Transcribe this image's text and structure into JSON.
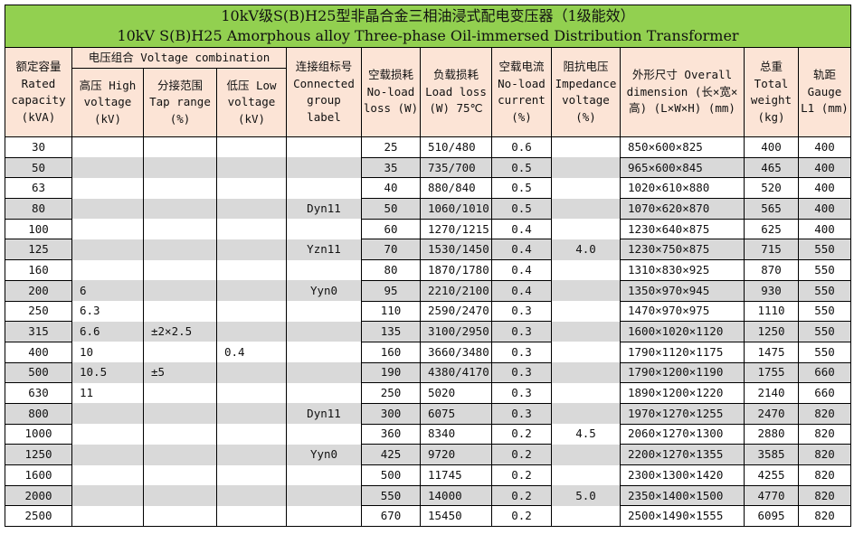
{
  "title": {
    "cn": "10kV级S(B)H25型非晶合金三相油浸式配电变压器（1级能效）",
    "en": "10kV S(B)H25 Amorphous alloy Three-phase Oil-immersed Distribution Transformer"
  },
  "headers": {
    "capacity": "额定容量 Rated capacity (kVA)",
    "voltage_combination": "电压组合 Voltage combination",
    "high_voltage": "高压 High voltage (kV)",
    "tap_range": "分接范围 Tap range (%)",
    "low_voltage": "低压 Low voltage (kV)",
    "group_label": "连接组标号 Connected group label",
    "no_load_loss": "空载损耗 No-load loss (W)",
    "load_loss": "负载损耗 Load loss (W) 75℃",
    "no_load_current": "空载电流 No-load current (%)",
    "impedance": "阻抗电压 Impedance voltage (%)",
    "dimension": "外形尺寸 Overall dimension (长×宽×高) (L×W×H) (mm)",
    "weight": "总重 Total weight (kg)",
    "gauge": "轨距 Gauge L1 (mm)"
  },
  "rows": [
    [
      "30",
      "",
      "",
      "",
      "",
      "25",
      "510/480",
      "0.6",
      "",
      "850×600×825",
      "400",
      "400"
    ],
    [
      "50",
      "",
      "",
      "",
      "",
      "35",
      "735/700",
      "0.5",
      "",
      "965×600×845",
      "465",
      "400"
    ],
    [
      "63",
      "",
      "",
      "",
      "",
      "40",
      "880/840",
      "0.5",
      "",
      "1020×610×880",
      "520",
      "400"
    ],
    [
      "80",
      "",
      "",
      "",
      "Dyn11",
      "50",
      "1060/1010",
      "0.5",
      "",
      "1070×620×870",
      "565",
      "400"
    ],
    [
      "100",
      "",
      "",
      "",
      "",
      "60",
      "1270/1215",
      "0.4",
      "",
      "1230×640×875",
      "625",
      "400"
    ],
    [
      "125",
      "",
      "",
      "",
      "Yzn11",
      "70",
      "1530/1450",
      "0.4",
      "4.0",
      "1230×750×875",
      "715",
      "550"
    ],
    [
      "160",
      "",
      "",
      "",
      "",
      "80",
      "1870/1780",
      "0.4",
      "",
      "1310×830×925",
      "870",
      "550"
    ],
    [
      "200",
      "6",
      "",
      "",
      "Yyn0",
      "95",
      "2210/2100",
      "0.4",
      "",
      "1350×970×945",
      "930",
      "550"
    ],
    [
      "250",
      "6.3",
      "",
      "",
      "",
      "110",
      "2590/2470",
      "0.3",
      "",
      "1470×970×975",
      "1110",
      "550"
    ],
    [
      "315",
      "6.6",
      "±2×2.5",
      "",
      "",
      "135",
      "3100/2950",
      "0.3",
      "",
      "1600×1020×1120",
      "1250",
      "550"
    ],
    [
      "400",
      "10",
      "",
      "0.4",
      "",
      "160",
      "3660/3480",
      "0.3",
      "",
      "1790×1120×1175",
      "1475",
      "550"
    ],
    [
      "500",
      "10.5",
      "±5",
      "",
      "",
      "190",
      "4380/4170",
      "0.3",
      "",
      "1790×1200×1190",
      "1755",
      "660"
    ],
    [
      "630",
      "11",
      "",
      "",
      "",
      "250",
      "5020",
      "0.3",
      "",
      "1890×1200×1220",
      "2140",
      "660"
    ],
    [
      "800",
      "",
      "",
      "",
      "Dyn11",
      "300",
      "6075",
      "0.3",
      "",
      "1970×1270×1255",
      "2470",
      "820"
    ],
    [
      "1000",
      "",
      "",
      "",
      "",
      "360",
      "8340",
      "0.2",
      "4.5",
      "2060×1270×1300",
      "2880",
      "820"
    ],
    [
      "1250",
      "",
      "",
      "",
      "Yyn0",
      "425",
      "9720",
      "0.2",
      "",
      "2200×1270×1355",
      "3585",
      "820"
    ],
    [
      "1600",
      "",
      "",
      "",
      "",
      "500",
      "11745",
      "0.2",
      "",
      "2300×1300×1420",
      "4255",
      "820"
    ],
    [
      "2000",
      "",
      "",
      "",
      "",
      "550",
      "14000",
      "0.2",
      "5.0",
      "2350×1400×1500",
      "4770",
      "820"
    ],
    [
      "2500",
      "",
      "",
      "",
      "",
      "670",
      "15450",
      "0.2",
      "",
      "2500×1490×1555",
      "6095",
      "820"
    ]
  ],
  "colors": {
    "title_bg": "#92d050",
    "header_bg": "#fce4d6",
    "band": "#d9d9d9"
  }
}
